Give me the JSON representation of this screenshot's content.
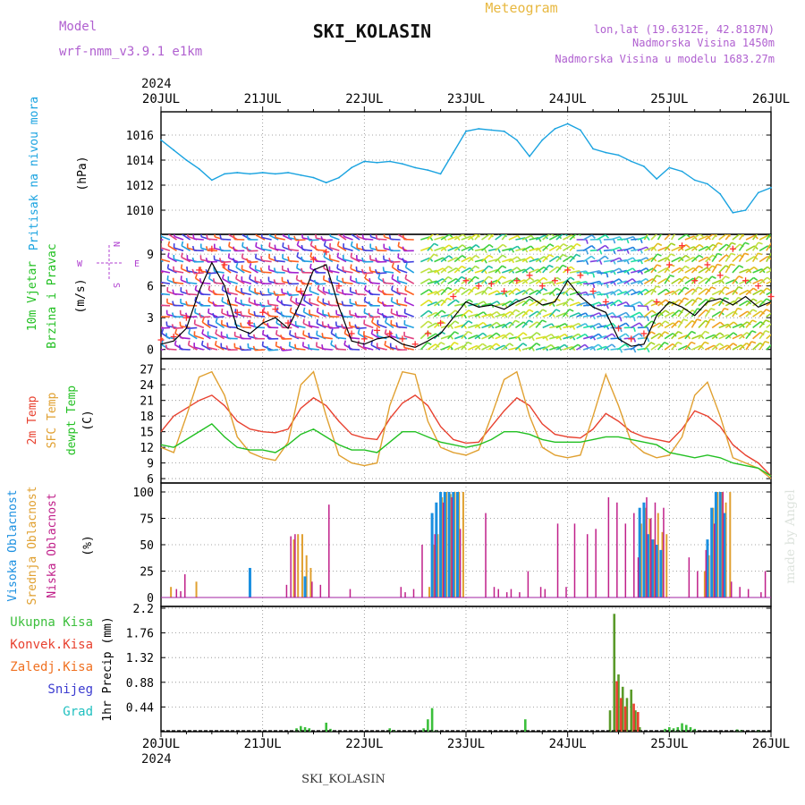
{
  "header": {
    "model_label": "Model",
    "model_name": "wrf-nmm_v3.9.1  e1km",
    "title": "SKI_KOLASIN",
    "meteogram": "Meteogram",
    "lonlat": "lon,lat (19.6312E, 42.8187N)",
    "elev": "Nadmorska Visina 1450m",
    "elev_model": "Nadmorska Visina u modelu 1683.27m",
    "year_top": "2024",
    "year_bottom": "2024",
    "footer": "SKI_KOLASIN",
    "credit": "made by Angel"
  },
  "colors": {
    "pressure": "#1aa3e0",
    "temp2m": "#e8412f",
    "sfc": "#e0a030",
    "dewpt": "#22c022",
    "high": "#1a8fe0",
    "mid": "#e0a030",
    "low": "#c0208a",
    "precip_total": "#3cbf3c",
    "precip_conv": "#e8412f",
    "precip_frozen": "#f07020",
    "snow": "#3c3cd0",
    "graupel": "#20c0c0",
    "wind": "#000000",
    "gust": "#ff3030"
  },
  "x_axis": {
    "labels": [
      "20JUL",
      "21JUL",
      "22JUL",
      "23JUL",
      "24JUL",
      "25JUL",
      "26JUL"
    ],
    "hours": 144
  },
  "chart_data": [
    {
      "type": "line",
      "title": "",
      "ylabel_lines": [
        "Pritisak na nivou mora",
        "(hPa)"
      ],
      "ylim": [
        1008.5,
        1017.5
      ],
      "yticks": [
        "1010",
        "1012",
        "1014",
        "1016"
      ],
      "x_hours": [
        0,
        3,
        6,
        9,
        12,
        15,
        18,
        21,
        24,
        27,
        30,
        33,
        36,
        39,
        42,
        45,
        48,
        51,
        54,
        57,
        60,
        63,
        66,
        69,
        72,
        75,
        78,
        81,
        84,
        87,
        90,
        93,
        96,
        99,
        102,
        105,
        108,
        111,
        114,
        117,
        120,
        123,
        126,
        129,
        132,
        135,
        138,
        141,
        144
      ],
      "series": [
        {
          "name": "Pritisak na nivou mora",
          "values": [
            1015.6,
            1014.8,
            1014.0,
            1013.3,
            1012.4,
            1012.9,
            1013.0,
            1012.9,
            1013.0,
            1012.9,
            1013.0,
            1012.8,
            1012.6,
            1012.2,
            1012.6,
            1013.4,
            1013.9,
            1013.8,
            1013.9,
            1013.7,
            1013.4,
            1013.2,
            1012.9,
            1014.6,
            1016.3,
            1016.5,
            1016.4,
            1016.3,
            1015.6,
            1014.3,
            1015.6,
            1016.5,
            1016.9,
            1016.4,
            1014.9,
            1014.6,
            1014.4,
            1013.9,
            1013.5,
            1012.5,
            1013.4,
            1013.1,
            1012.4,
            1012.1,
            1011.3,
            1009.8,
            1010.0,
            1011.4,
            1011.8
          ]
        }
      ]
    },
    {
      "type": "line",
      "title": "",
      "ylabel_lines": [
        "10m Vjetar",
        "Brzina i Pravac",
        "(m/s)"
      ],
      "ylim": [
        -0.7,
        10.7
      ],
      "yticks": [
        "0",
        "3",
        "6",
        "9"
      ],
      "compass": {
        "n": "N",
        "s": "S",
        "w": "W",
        "e": "E"
      },
      "x_hours": [
        0,
        3,
        6,
        9,
        12,
        15,
        18,
        21,
        24,
        27,
        30,
        33,
        36,
        39,
        42,
        45,
        48,
        51,
        54,
        57,
        60,
        63,
        66,
        69,
        72,
        75,
        78,
        81,
        84,
        87,
        90,
        93,
        96,
        99,
        102,
        105,
        108,
        111,
        114,
        117,
        120,
        123,
        126,
        129,
        132,
        135,
        138,
        141,
        144
      ],
      "series": [
        {
          "name": "wind",
          "values": [
            0.5,
            0.8,
            2.0,
            5.5,
            8.2,
            6.0,
            2.0,
            1.5,
            2.5,
            3.0,
            2.0,
            4.5,
            7.5,
            8.0,
            4.0,
            0.8,
            0.5,
            1.0,
            1.2,
            0.5,
            0.2,
            0.8,
            1.5,
            3.0,
            4.5,
            4.0,
            4.2,
            3.8,
            4.5,
            5.0,
            4.2,
            4.5,
            6.5,
            5.0,
            4.0,
            3.5,
            1.0,
            0.3,
            0.5,
            3.2,
            4.5,
            4.0,
            3.2,
            4.5,
            4.8,
            4.2,
            5.0,
            4.0,
            4.5
          ]
        },
        {
          "name": "gust",
          "values": [
            0.9,
            1.2,
            3.0,
            7.5,
            9.5,
            8.0,
            3.5,
            2.5,
            3.5,
            3.8,
            2.5,
            5.5,
            8.5,
            9.2,
            6.0,
            1.5,
            1.0,
            1.8,
            1.5,
            1.0,
            0.5,
            1.5,
            2.5,
            5.0,
            6.5,
            6.0,
            6.2,
            5.5,
            6.5,
            7.0,
            6.0,
            6.5,
            7.5,
            7.0,
            5.5,
            4.5,
            2.0,
            1.0,
            1.5,
            4.5,
            8.0,
            9.8,
            6.5,
            8.0,
            7.0,
            9.5,
            6.5,
            6.0,
            5.0
          ]
        }
      ]
    },
    {
      "type": "line",
      "title": "",
      "ylabel_lines": [
        "2m Temp",
        "SFC Temp",
        "dewpt Temp",
        "(C)"
      ],
      "ylim": [
        5.5,
        28.5
      ],
      "yticks": [
        "6",
        "9",
        "12",
        "15",
        "18",
        "21",
        "24",
        "27"
      ],
      "x_hours": [
        0,
        3,
        6,
        9,
        12,
        15,
        18,
        21,
        24,
        27,
        30,
        33,
        36,
        39,
        42,
        45,
        48,
        51,
        54,
        57,
        60,
        63,
        66,
        69,
        72,
        75,
        78,
        81,
        84,
        87,
        90,
        93,
        96,
        99,
        102,
        105,
        108,
        111,
        114,
        117,
        120,
        123,
        126,
        129,
        132,
        135,
        138,
        141,
        144
      ],
      "series": [
        {
          "name": "2m Temp",
          "values": [
            15.0,
            18.0,
            19.5,
            21.0,
            22.0,
            20.0,
            17.0,
            15.5,
            15.0,
            14.8,
            15.5,
            19.5,
            21.5,
            20.0,
            17.0,
            14.5,
            13.8,
            13.5,
            17.5,
            20.5,
            22.0,
            20.0,
            16.0,
            13.5,
            12.8,
            13.0,
            16.0,
            19.0,
            21.5,
            20.0,
            16.5,
            14.5,
            14.0,
            13.8,
            15.5,
            18.5,
            17.0,
            15.0,
            14.0,
            13.5,
            13.0,
            15.5,
            19.0,
            18.0,
            16.0,
            12.5,
            10.5,
            9.0,
            6.5
          ]
        },
        {
          "name": "SFC Temp",
          "values": [
            12.0,
            11.0,
            18.0,
            25.5,
            26.5,
            22.0,
            14.0,
            11.0,
            10.0,
            9.5,
            13.0,
            24.0,
            26.5,
            18.0,
            10.5,
            9.0,
            8.5,
            9.0,
            20.0,
            26.5,
            26.0,
            17.0,
            12.0,
            11.0,
            10.5,
            11.5,
            18.0,
            25.0,
            26.5,
            18.0,
            12.0,
            10.5,
            10.0,
            10.5,
            18.0,
            26.0,
            20.0,
            13.0,
            11.0,
            10.0,
            10.5,
            14.0,
            22.0,
            24.5,
            18.0,
            10.0,
            9.0,
            8.0,
            6.0
          ]
        },
        {
          "name": "dewpt Temp",
          "values": [
            12.5,
            12.0,
            13.5,
            15.0,
            16.5,
            14.0,
            12.0,
            11.5,
            11.5,
            11.0,
            12.5,
            14.5,
            15.5,
            14.0,
            12.5,
            11.5,
            11.5,
            11.0,
            13.0,
            15.0,
            15.0,
            14.0,
            13.0,
            12.5,
            12.0,
            12.5,
            13.5,
            15.0,
            15.0,
            14.5,
            13.5,
            13.0,
            13.0,
            13.0,
            13.5,
            14.0,
            14.0,
            13.5,
            13.0,
            12.5,
            11.0,
            10.5,
            10.0,
            10.5,
            10.0,
            9.0,
            8.5,
            8.0,
            6.5
          ]
        }
      ]
    },
    {
      "type": "bar",
      "title": "",
      "ylabel_lines": [
        "Visoka Oblacnost",
        "Srednja Oblacnost",
        "Niska Oblacnost",
        "(%)"
      ],
      "ylim": [
        0,
        100
      ],
      "yticks": [
        "0",
        "25",
        "50",
        "75",
        "100"
      ],
      "series": [
        {
          "name": "Visoka Oblacnost",
          "x_hours": [
            21,
            34,
            64,
            65,
            66,
            67,
            68,
            69,
            70,
            113,
            114,
            115,
            116,
            117,
            118,
            129,
            130,
            131,
            132,
            133
          ],
          "values": [
            28,
            20,
            80,
            90,
            100,
            100,
            100,
            100,
            100,
            85,
            90,
            60,
            55,
            50,
            45,
            55,
            85,
            100,
            100,
            80
          ]
        },
        {
          "name": "Srednja Oblacnost",
          "x_hours": [
            2,
            8,
            31,
            32,
            33,
            34,
            35,
            63,
            64,
            65,
            66,
            67,
            68,
            69,
            70,
            71,
            113,
            114,
            115,
            116,
            117,
            118,
            119,
            128,
            129,
            130,
            131,
            132,
            133,
            134
          ],
          "values": [
            10,
            15,
            55,
            60,
            60,
            40,
            28,
            10,
            50,
            60,
            95,
            100,
            98,
            100,
            100,
            100,
            70,
            85,
            75,
            55,
            80,
            62,
            60,
            25,
            40,
            85,
            100,
            100,
            90,
            100
          ]
        },
        {
          "name": "Niska Oblacnost",
          "x_hours": [
            4,
            5,
            6,
            30,
            31,
            32,
            36,
            38,
            40,
            45,
            57,
            58,
            60,
            62,
            65,
            67,
            69,
            71,
            77,
            79,
            80,
            82,
            83,
            85,
            87,
            90,
            91,
            94,
            96,
            98,
            101,
            103,
            106,
            108,
            110,
            112,
            113,
            115,
            116,
            117,
            119,
            125,
            127,
            129,
            131,
            133,
            135,
            137,
            139,
            142,
            143
          ],
          "values": [
            8,
            6,
            22,
            12,
            58,
            60,
            15,
            12,
            88,
            8,
            10,
            5,
            8,
            50,
            60,
            90,
            95,
            65,
            80,
            10,
            8,
            5,
            8,
            5,
            25,
            10,
            8,
            70,
            10,
            70,
            60,
            65,
            95,
            90,
            70,
            80,
            38,
            95,
            75,
            90,
            85,
            38,
            25,
            45,
            70,
            100,
            15,
            10,
            8,
            5,
            25
          ]
        }
      ]
    },
    {
      "type": "bar",
      "title": "",
      "ylabel_lines": [
        "1hr Precip (mm)"
      ],
      "legend": [
        "Ukupna Kisa",
        "Konvek.Kisa",
        "Zaledj.Kisa",
        "Snijeg",
        "Grad"
      ],
      "ylim": [
        0,
        2.2
      ],
      "yticks": [
        "0.44",
        "0.88",
        "1.32",
        "1.76",
        "2.2"
      ],
      "series": [
        {
          "name": "Ukupna Kisa",
          "x_hours": [
            32,
            33,
            34,
            35,
            39,
            40,
            54,
            55,
            62,
            63,
            64,
            65,
            86,
            106,
            107,
            108,
            109,
            110,
            111,
            112,
            113,
            119,
            120,
            121,
            122,
            123,
            124,
            125,
            126,
            136,
            137,
            141
          ],
          "values": [
            0.06,
            0.1,
            0.08,
            0.06,
            0.16,
            0.05,
            0.06,
            0.03,
            0.06,
            0.22,
            0.42,
            0.02,
            0.22,
            0.38,
            2.1,
            1.02,
            0.8,
            0.6,
            0.75,
            0.38,
            0.08,
            0.05,
            0.08,
            0.06,
            0.08,
            0.15,
            0.12,
            0.08,
            0.05,
            0.04,
            0.03,
            0.03
          ]
        },
        {
          "name": "Konvek.Kisa",
          "x_hours": [
            107,
            108,
            109,
            111,
            112
          ],
          "values": [
            0.9,
            0.6,
            0.45,
            0.5,
            0.35
          ]
        }
      ]
    }
  ]
}
